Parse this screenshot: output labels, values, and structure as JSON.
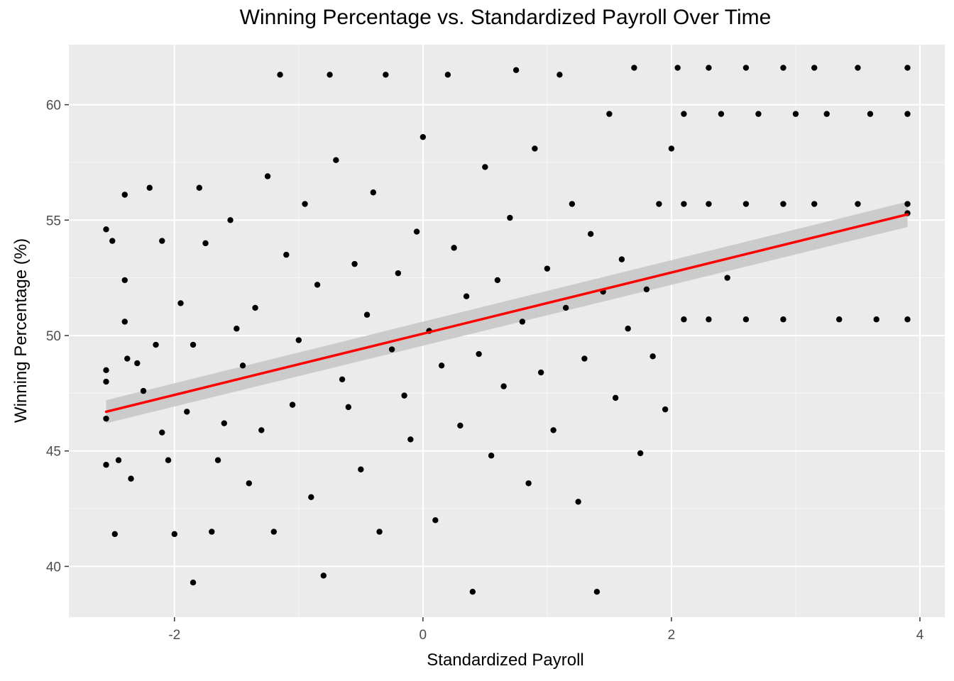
{
  "chart_data": {
    "type": "scatter",
    "title": "Winning Percentage vs. Standardized Payroll Over Time",
    "xlabel": "Standardized Payroll",
    "ylabel": "Winning Percentage (%)",
    "xlim": [
      -2.85,
      4.2
    ],
    "ylim": [
      37.8,
      62.6
    ],
    "x_ticks": [
      -2,
      0,
      2,
      4
    ],
    "x_tick_labels": [
      "-2",
      "0",
      "2",
      "4"
    ],
    "y_ticks": [
      40,
      45,
      50,
      55,
      60
    ],
    "y_tick_labels": [
      "40",
      "45",
      "50",
      "55",
      "60"
    ],
    "grid": true,
    "legend": "none",
    "colors": {
      "panel_background": "#ebebeb",
      "grid_major": "#ffffff",
      "grid_minor": "#f5f5f5",
      "points": "#000000",
      "fit_line": "#ff0000",
      "confidence_band": "#c8c8c8"
    },
    "series": [
      {
        "type": "scatter",
        "points": [
          [
            -2.55,
            54.6
          ],
          [
            -2.55,
            48.5
          ],
          [
            -2.55,
            48.0
          ],
          [
            -2.55,
            44.4
          ],
          [
            -2.55,
            46.4
          ],
          [
            -2.5,
            54.1
          ],
          [
            -2.48,
            41.4
          ],
          [
            -2.45,
            44.6
          ],
          [
            -2.4,
            56.1
          ],
          [
            -2.4,
            52.4
          ],
          [
            -2.4,
            50.6
          ],
          [
            -2.38,
            49.0
          ],
          [
            -2.35,
            43.8
          ],
          [
            -2.3,
            48.8
          ],
          [
            -2.25,
            47.6
          ],
          [
            -2.2,
            56.4
          ],
          [
            -2.15,
            49.6
          ],
          [
            -2.1,
            45.8
          ],
          [
            -2.1,
            54.1
          ],
          [
            -2.05,
            44.6
          ],
          [
            -2.0,
            41.4
          ],
          [
            -1.95,
            51.4
          ],
          [
            -1.9,
            46.7
          ],
          [
            -1.85,
            49.6
          ],
          [
            -1.85,
            39.3
          ],
          [
            -1.8,
            56.4
          ],
          [
            -1.75,
            54.0
          ],
          [
            -1.7,
            41.5
          ],
          [
            -1.65,
            44.6
          ],
          [
            -1.6,
            46.2
          ],
          [
            -1.55,
            55.0
          ],
          [
            -1.5,
            50.3
          ],
          [
            -1.45,
            48.7
          ],
          [
            -1.4,
            43.6
          ],
          [
            -1.35,
            51.2
          ],
          [
            -1.3,
            45.9
          ],
          [
            -1.25,
            56.9
          ],
          [
            -1.2,
            41.5
          ],
          [
            -1.15,
            61.3
          ],
          [
            -1.1,
            53.5
          ],
          [
            -1.05,
            47.0
          ],
          [
            -1.0,
            49.8
          ],
          [
            -0.95,
            55.7
          ],
          [
            -0.9,
            43.0
          ],
          [
            -0.85,
            52.2
          ],
          [
            -0.8,
            39.6
          ],
          [
            -0.75,
            61.3
          ],
          [
            -0.7,
            57.6
          ],
          [
            -0.65,
            48.1
          ],
          [
            -0.6,
            46.9
          ],
          [
            -0.55,
            53.1
          ],
          [
            -0.5,
            44.2
          ],
          [
            -0.45,
            50.9
          ],
          [
            -0.4,
            56.2
          ],
          [
            -0.35,
            41.5
          ],
          [
            -0.3,
            61.3
          ],
          [
            -0.25,
            49.4
          ],
          [
            -0.2,
            52.7
          ],
          [
            -0.15,
            47.4
          ],
          [
            -0.1,
            45.5
          ],
          [
            -0.05,
            54.5
          ],
          [
            0.0,
            58.6
          ],
          [
            0.05,
            50.2
          ],
          [
            0.1,
            42.0
          ],
          [
            0.15,
            48.7
          ],
          [
            0.2,
            61.3
          ],
          [
            0.25,
            53.8
          ],
          [
            0.3,
            46.1
          ],
          [
            0.35,
            51.7
          ],
          [
            0.4,
            38.9
          ],
          [
            0.45,
            49.2
          ],
          [
            0.5,
            57.3
          ],
          [
            0.55,
            44.8
          ],
          [
            0.6,
            52.4
          ],
          [
            0.65,
            47.8
          ],
          [
            0.7,
            55.1
          ],
          [
            0.75,
            61.5
          ],
          [
            0.8,
            50.6
          ],
          [
            0.85,
            43.6
          ],
          [
            0.9,
            58.1
          ],
          [
            0.95,
            48.4
          ],
          [
            1.0,
            52.9
          ],
          [
            1.05,
            45.9
          ],
          [
            1.1,
            61.3
          ],
          [
            1.15,
            51.2
          ],
          [
            1.2,
            55.7
          ],
          [
            1.25,
            42.8
          ],
          [
            1.3,
            49.0
          ],
          [
            1.35,
            54.4
          ],
          [
            1.4,
            38.9
          ],
          [
            1.45,
            51.9
          ],
          [
            1.5,
            59.6
          ],
          [
            1.55,
            47.3
          ],
          [
            1.6,
            53.3
          ],
          [
            1.65,
            50.3
          ],
          [
            1.7,
            61.6
          ],
          [
            1.75,
            44.9
          ],
          [
            1.8,
            52.0
          ],
          [
            1.85,
            49.1
          ],
          [
            1.9,
            55.7
          ],
          [
            1.95,
            46.8
          ],
          [
            2.0,
            58.1
          ],
          [
            2.05,
            61.6
          ],
          [
            2.1,
            50.7
          ],
          [
            2.1,
            59.6
          ],
          [
            2.1,
            55.7
          ],
          [
            2.3,
            61.6
          ],
          [
            2.3,
            55.7
          ],
          [
            2.3,
            50.7
          ],
          [
            2.4,
            59.6
          ],
          [
            2.45,
            52.5
          ],
          [
            2.6,
            61.6
          ],
          [
            2.6,
            55.7
          ],
          [
            2.6,
            50.7
          ],
          [
            2.7,
            59.6
          ],
          [
            2.9,
            61.6
          ],
          [
            2.9,
            55.7
          ],
          [
            2.9,
            50.7
          ],
          [
            3.0,
            59.6
          ],
          [
            3.15,
            61.6
          ],
          [
            3.15,
            55.7
          ],
          [
            3.25,
            59.6
          ],
          [
            3.35,
            50.7
          ],
          [
            3.5,
            61.6
          ],
          [
            3.5,
            55.7
          ],
          [
            3.6,
            59.6
          ],
          [
            3.65,
            50.7
          ],
          [
            3.9,
            61.6
          ],
          [
            3.9,
            59.6
          ],
          [
            3.9,
            55.7
          ],
          [
            3.9,
            55.3
          ],
          [
            3.9,
            50.7
          ]
        ]
      },
      {
        "type": "line",
        "name": "",
        "x": [
          -2.55,
          3.9
        ],
        "y": [
          46.7,
          55.25
        ],
        "ci_low": [
          46.2,
          54.7
        ],
        "ci_high": [
          47.2,
          55.8
        ]
      }
    ]
  }
}
